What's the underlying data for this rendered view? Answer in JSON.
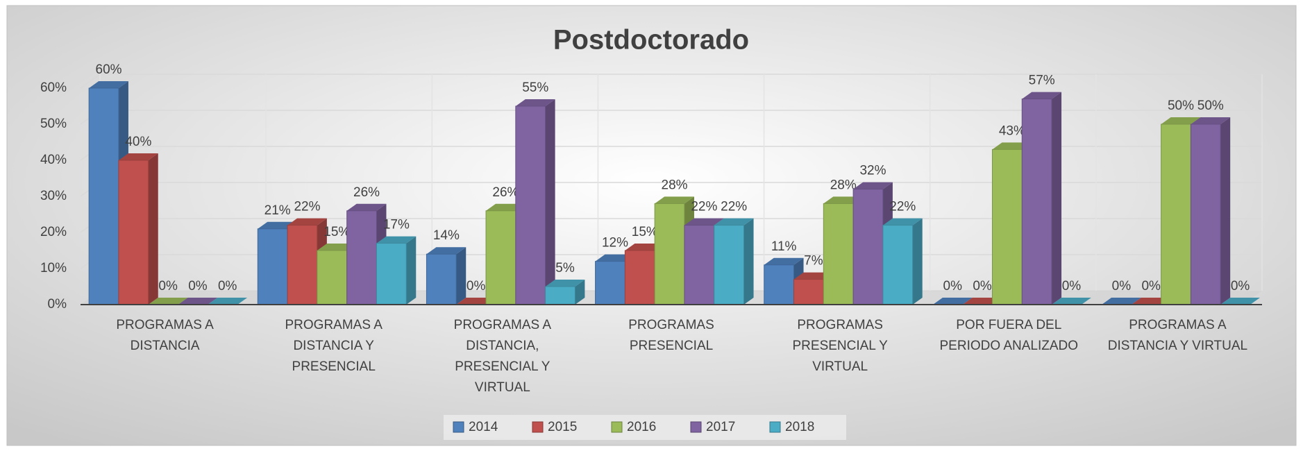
{
  "chart_data": {
    "type": "bar3d",
    "title": "Postdoctorado",
    "categories": [
      "PROGRAMAS A DISTANCIA",
      "PROGRAMAS A DISTANCIA Y PRESENCIAL",
      "PROGRAMAS A DISTANCIA, PRESENCIAL Y VIRTUAL",
      "PROGRAMAS PRESENCIAL",
      "PROGRAMAS PRESENCIAL Y VIRTUAL",
      "POR FUERA DEL PERIODO ANALIZADO",
      "PROGRAMAS A DISTANCIA Y VIRTUAL"
    ],
    "series": [
      {
        "name": "2014",
        "color": "#4f81bd",
        "values": [
          60,
          21,
          14,
          12,
          11,
          0,
          0
        ],
        "value_labels": [
          "60%",
          "21%",
          "14%",
          "12%",
          "11%",
          "0%",
          "0%"
        ]
      },
      {
        "name": "2015",
        "color": "#c0504d",
        "values": [
          40,
          22,
          0,
          15,
          7,
          0,
          0
        ],
        "value_labels": [
          "40%",
          "22%",
          "0%",
          "15%",
          "7%",
          "0%",
          "0%"
        ]
      },
      {
        "name": "2016",
        "color": "#9bbb59",
        "values": [
          0,
          15,
          26,
          28,
          28,
          43,
          50
        ],
        "value_labels": [
          "0%",
          "15%",
          "26%",
          "28%",
          "28%",
          "43%",
          "50%"
        ]
      },
      {
        "name": "2017",
        "color": "#8064a2",
        "values": [
          0,
          26,
          55,
          22,
          32,
          57,
          50
        ],
        "value_labels": [
          "0%",
          "26%",
          "55%",
          "22%",
          "32%",
          "57%",
          "50%"
        ]
      },
      {
        "name": "2018",
        "color": "#4bacc6",
        "values": [
          0,
          17,
          5,
          22,
          22,
          0,
          0
        ],
        "value_labels": [
          "0%",
          "17%",
          "5%",
          "22%",
          "22%",
          "0%",
          "0%"
        ]
      }
    ],
    "ylim": [
      0,
      60
    ],
    "yticks": [
      {
        "value": 0,
        "label": "0%"
      },
      {
        "value": 10,
        "label": "10%"
      },
      {
        "value": 20,
        "label": "20%"
      },
      {
        "value": 30,
        "label": "30%"
      },
      {
        "value": 40,
        "label": "40%"
      },
      {
        "value": 50,
        "label": "50%"
      },
      {
        "value": 60,
        "label": "60%"
      }
    ],
    "grid": true,
    "legend": "bottom"
  }
}
